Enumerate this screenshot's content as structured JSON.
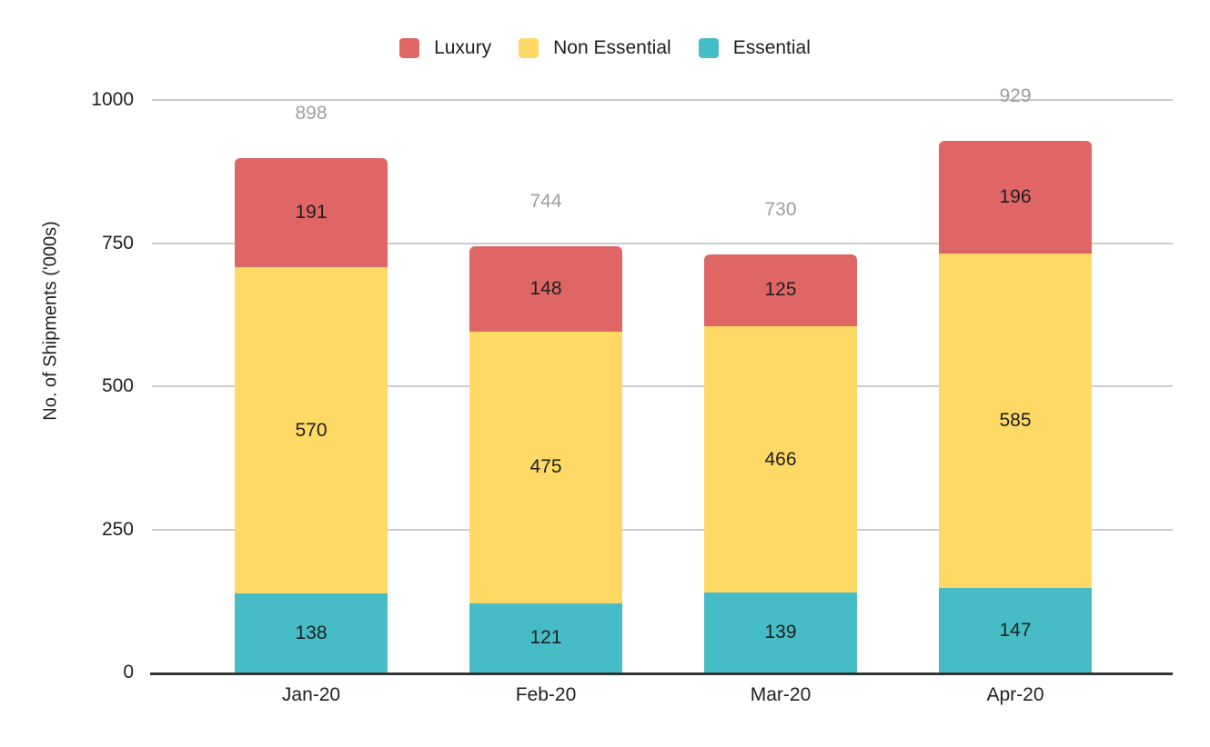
{
  "chart_data": {
    "type": "bar",
    "stacked": true,
    "categories": [
      "Jan-20",
      "Feb-20",
      "Mar-20",
      "Apr-20"
    ],
    "series": [
      {
        "name": "Essential",
        "color": "#46BDC6",
        "values": [
          138,
          121,
          139,
          147
        ]
      },
      {
        "name": "Non Essential",
        "color": "#FFD966",
        "values": [
          570,
          475,
          466,
          585
        ]
      },
      {
        "name": "Luxury",
        "color": "#E06666",
        "values": [
          191,
          148,
          125,
          196
        ]
      }
    ],
    "totals": [
      898,
      744,
      730,
      929
    ],
    "legend": {
      "position": "top",
      "order": [
        "Luxury",
        "Non Essential",
        "Essential"
      ]
    },
    "ylabel": "No. of Shipments ('000s)",
    "yticks": [
      0,
      250,
      500,
      750,
      1000
    ],
    "ylim": [
      0,
      1000
    ],
    "grid": true
  },
  "colors": {
    "background": "#ffffff",
    "gridline": "#cccccc",
    "axis_line": "#333333",
    "tick_text": "#212121",
    "total_label": "#9e9e9e",
    "segment_label": "#1f1f1f"
  }
}
